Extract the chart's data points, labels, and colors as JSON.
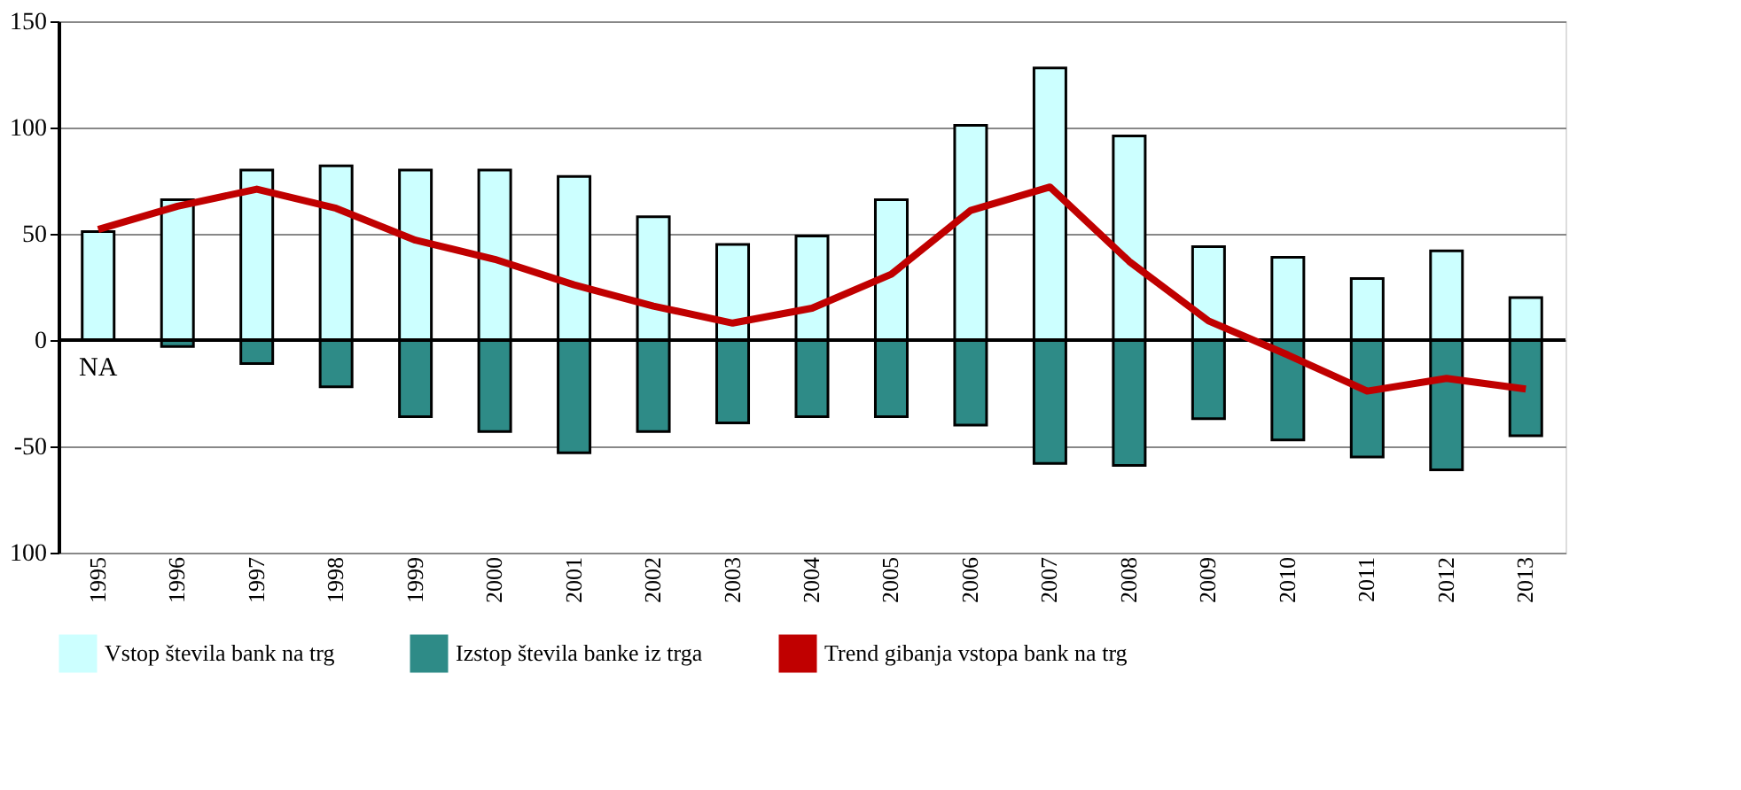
{
  "chart_data": {
    "type": "bar",
    "categories": [
      "1995",
      "1996",
      "1997",
      "1998",
      "1999",
      "2000",
      "2001",
      "2002",
      "2003",
      "2004",
      "2005",
      "2006",
      "2007",
      "2008",
      "2009",
      "2010",
      "2011",
      "2012",
      "2013"
    ],
    "series": [
      {
        "name": "Vstop števila bank na trg",
        "color": "#ccffff",
        "values": [
          51,
          66,
          80,
          82,
          80,
          80,
          77,
          58,
          45,
          49,
          66,
          101,
          128,
          96,
          44,
          39,
          29,
          42,
          20
        ]
      },
      {
        "name": "Izstop števila banke iz trga",
        "color": "#2e8b87",
        "values": [
          null,
          -3,
          -11,
          -22,
          -36,
          -43,
          -53,
          -43,
          -39,
          -36,
          -36,
          -40,
          -58,
          -59,
          -37,
          -47,
          -55,
          -61,
          -45
        ]
      },
      {
        "name": "Trend gibanja vstopa bank na trg",
        "type": "line",
        "color": "#c00000",
        "values": [
          52,
          63,
          71,
          62,
          47,
          38,
          26,
          16,
          8,
          15,
          31,
          61,
          72,
          37,
          9,
          -7,
          -24,
          -18,
          -23
        ]
      }
    ],
    "ylim": [
      -100,
      150
    ],
    "yticks": [
      {
        "value": -100,
        "label": "100"
      },
      -50,
      0,
      50,
      100,
      150
    ],
    "grid": "y",
    "legend": "bottom",
    "marker": "none",
    "line_style": "solid",
    "stacked": true,
    "annotations": [
      "NA"
    ]
  }
}
